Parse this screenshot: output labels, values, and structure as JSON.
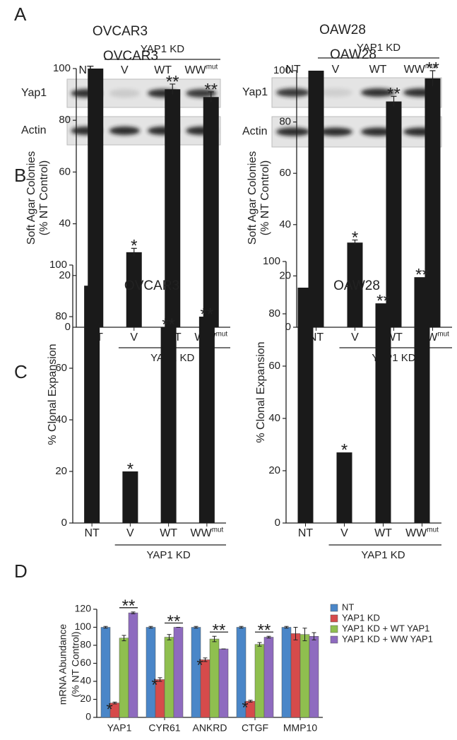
{
  "panel_labels": [
    "A",
    "B",
    "C",
    "D"
  ],
  "blots": [
    {
      "title": "OVCAR3",
      "group_label": "YAP1 KD",
      "lanes": [
        "NT",
        "V",
        "WT",
        {
          "text": "WW",
          "sup": "mut"
        }
      ],
      "rows": [
        "Yap1",
        "Actin"
      ]
    },
    {
      "title": "OAW28",
      "group_label": "YAP1 KD",
      "lanes": [
        "NT",
        "V",
        "WT",
        {
          "text": "WW",
          "sup": "mut"
        }
      ],
      "rows": [
        "Yap1",
        "Actin"
      ]
    }
  ],
  "chart_data": [
    {
      "type": "bar",
      "title": "OVCAR3",
      "ylabel": [
        "Soft Agar Colonies",
        "(% NT Control)"
      ],
      "categories": [
        "NT",
        "V",
        "WT",
        {
          "text": "WW",
          "sup": "mut"
        }
      ],
      "group_label": "YAP1 KD",
      "values": [
        100,
        29,
        92,
        89
      ],
      "errors": [
        null,
        1.5,
        2,
        2
      ],
      "annotations": [
        null,
        "*",
        "**",
        "**"
      ],
      "color": "#1a1a1a",
      "ylim": [
        0,
        100
      ],
      "yticks": [
        0,
        20,
        40,
        60,
        80,
        100
      ]
    },
    {
      "type": "bar",
      "title": "OAW28",
      "ylabel": [
        "Soft Agar Colonies",
        "(% NT Control)"
      ],
      "categories": [
        "NT",
        "V",
        "WT",
        {
          "text": "WW",
          "sup": "mut"
        }
      ],
      "group_label": "YAP1 KD",
      "values": [
        100,
        33,
        88,
        97
      ],
      "errors": [
        null,
        1,
        2,
        3
      ],
      "annotations": [
        null,
        "*",
        "**",
        "**"
      ],
      "color": "#1a1a1a",
      "ylim": [
        0,
        100
      ],
      "yticks": [
        0,
        20,
        40,
        60,
        80,
        100
      ]
    },
    {
      "type": "bar",
      "title": "OVCAR3",
      "ylabel": [
        "% Clonal Expansion"
      ],
      "categories": [
        "NT",
        "V",
        "WT",
        {
          "text": "WW",
          "sup": "mut"
        }
      ],
      "group_label": "YAP1 KD",
      "values": [
        92,
        20,
        76,
        80
      ],
      "annotations": [
        null,
        "*",
        "**",
        "**"
      ],
      "color": "#1a1a1a",
      "ylim": [
        0,
        100
      ],
      "yticks": [
        0,
        20,
        40,
        60,
        80,
        100
      ]
    },
    {
      "type": "bar",
      "title": "OAW28",
      "ylabel": [
        "% Clonal Expansion"
      ],
      "categories": [
        "NT",
        "V",
        "WT",
        {
          "text": "WW",
          "sup": "mut"
        }
      ],
      "group_label": "YAP1 KD",
      "values": [
        90,
        27,
        84,
        94
      ],
      "annotations": [
        null,
        "*",
        "**",
        "**"
      ],
      "color": "#1a1a1a",
      "ylim": [
        0,
        100
      ],
      "yticks": [
        0,
        20,
        40,
        60,
        80,
        100
      ]
    },
    {
      "type": "grouped_bar",
      "ylabel": [
        "mRNA Abundance",
        "(% NT Control)"
      ],
      "categories": [
        "YAP1",
        "CYR61",
        "ANKRD",
        "CTGF",
        "MMP10"
      ],
      "series": [
        {
          "name": "NT",
          "color": "#4a86c8",
          "values": [
            100,
            100,
            100,
            100,
            100
          ],
          "errors": [
            1,
            1,
            1,
            1,
            1
          ]
        },
        {
          "name": "YAP1 KD",
          "color": "#d64b4b",
          "values": [
            16,
            42,
            64,
            18,
            93
          ],
          "errors": [
            1,
            2,
            2,
            1,
            7
          ],
          "annotations": [
            "*",
            "*",
            "*",
            "*",
            null
          ]
        },
        {
          "name": "YAP1 KD + WT YAP1",
          "color": "#8fbf4f",
          "values": [
            88,
            89,
            87,
            81,
            92
          ],
          "errors": [
            3,
            3,
            3,
            2,
            7
          ]
        },
        {
          "name": "YAP1 KD + WW YAP1",
          "color": "#8e6bbf",
          "values": [
            116,
            100,
            76,
            89,
            90
          ],
          "errors": [
            1,
            0,
            0,
            1,
            4
          ],
          "annotations": [
            "**",
            "**",
            "**",
            "**",
            null
          ]
        }
      ],
      "ylim": [
        0,
        120
      ],
      "yticks": [
        0,
        20,
        40,
        60,
        80,
        100,
        120
      ],
      "legend": "top-right"
    }
  ]
}
